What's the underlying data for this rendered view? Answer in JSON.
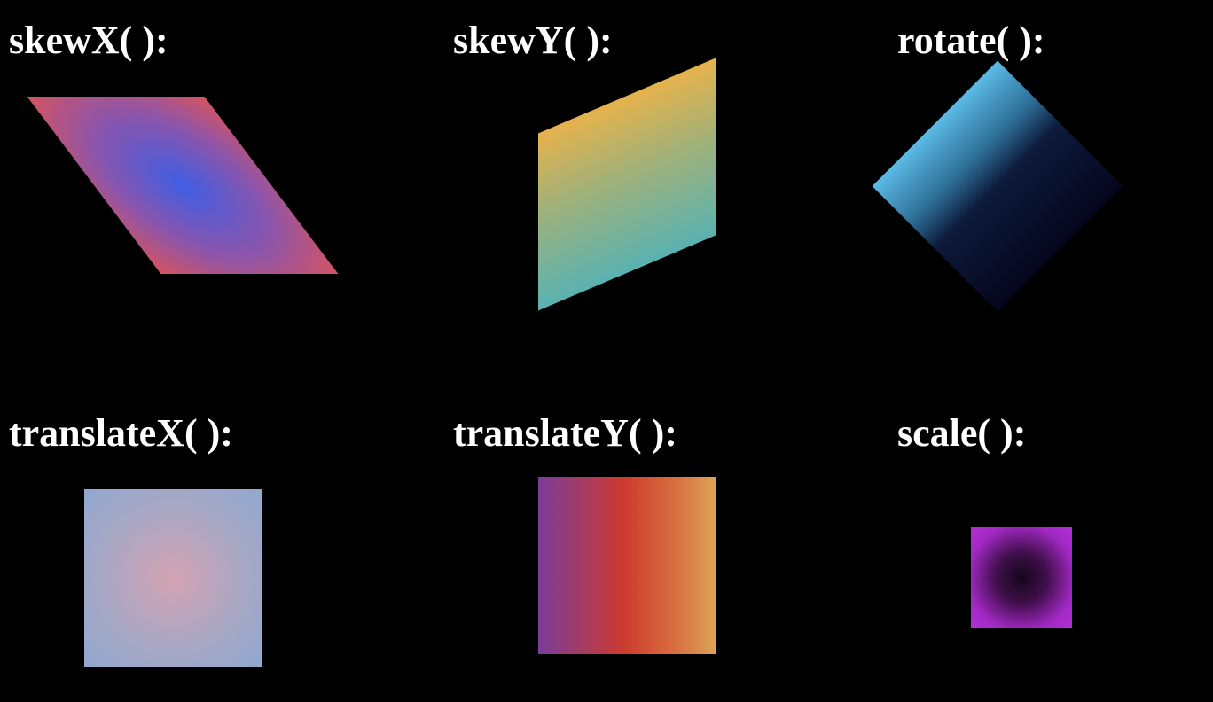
{
  "labels": {
    "skewx": "skewX( ):",
    "skewy": "skewY( ):",
    "rotate": "rotate( ):",
    "translatex": "translateX( ):",
    "translatey": "translateY( ):",
    "scale": "scale( ):"
  },
  "colors": {
    "background": "#000000",
    "label_text": "#ffffff",
    "skewx_gradient": [
      "#3f5ee3",
      "#8a55ad",
      "#d5545f"
    ],
    "skewy_gradient": [
      "#e6b24c",
      "#9fb17a",
      "#5ab2b2"
    ],
    "rotate_gradient": [
      "#5bbbe6",
      "#2e6d96",
      "#0d1a3a",
      "#05061c"
    ],
    "translatex_gradient": [
      "#d3a2b2",
      "#a6a8c6",
      "#90a8d0"
    ],
    "translatey_gradient": [
      "#7a3d9a",
      "#cc3a30",
      "#d86a3d",
      "#dca257"
    ],
    "scale_gradient": [
      "#14071a",
      "#3f0f4a",
      "#a229c4",
      "#b230d6"
    ]
  }
}
